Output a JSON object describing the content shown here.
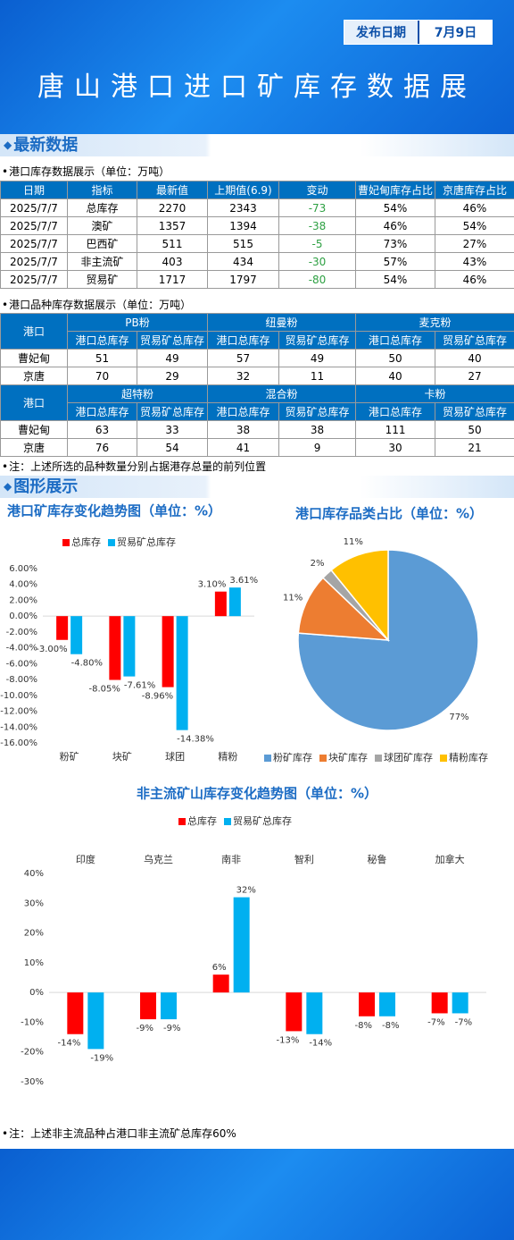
{
  "header": {
    "date_label": "发布日期",
    "date": "7月9日",
    "title": "唐山港口进口矿库存数据展"
  },
  "sections": [
    "最新数据",
    "图形展示"
  ],
  "table1": {
    "caption": "港口库存数据展示（单位：万吨）",
    "columns": [
      "日期",
      "指标",
      "最新值",
      "上期值(6.9)",
      "变动",
      "曹妃甸库存占比",
      "京唐库存占比"
    ],
    "rows": [
      [
        "2025/7/7",
        "总库存",
        "2270",
        "2343",
        "-73",
        "54%",
        "46%"
      ],
      [
        "2025/7/7",
        "澳矿",
        "1357",
        "1394",
        "-38",
        "46%",
        "54%"
      ],
      [
        "2025/7/7",
        "巴西矿",
        "511",
        "515",
        "-5",
        "73%",
        "27%"
      ],
      [
        "2025/7/7",
        "非主流矿",
        "403",
        "434",
        "-30",
        "57%",
        "43%"
      ],
      [
        "2025/7/7",
        "贸易矿",
        "1717",
        "1797",
        "-80",
        "54%",
        "46%"
      ]
    ]
  },
  "table2": {
    "caption": "港口品种库存数据展示（单位：万吨）",
    "blocks": [
      {
        "port": "港口",
        "products": [
          "PB粉",
          "纽曼粉",
          "麦克粉"
        ],
        "subheaders": [
          "港口总库存",
          "贸易矿总库存",
          "港口总库存",
          "贸易矿总库存",
          "港口总库存",
          "贸易矿总库存"
        ],
        "rows": [
          [
            "曹妃甸",
            "51",
            "49",
            "57",
            "49",
            "50",
            "40"
          ],
          [
            "京唐",
            "70",
            "29",
            "32",
            "11",
            "40",
            "27"
          ]
        ]
      },
      {
        "port": "港口",
        "products": [
          "超特粉",
          "混合粉",
          "卡粉"
        ],
        "subheaders": [
          "港口总库存",
          "贸易矿总库存",
          "港口总库存",
          "贸易矿总库存",
          "港口总库存",
          "贸易矿总库存"
        ],
        "rows": [
          [
            "曹妃甸",
            "63",
            "33",
            "38",
            "38",
            "111",
            "50"
          ],
          [
            "京唐",
            "76",
            "54",
            "41",
            "9",
            "30",
            "21"
          ]
        ]
      }
    ]
  },
  "notes": [
    "注：上述所选的品种数量分别占据港存总量的前列位置",
    "注：上述非主流品种占港口非主流矿总库存60%"
  ],
  "chart_data": [
    {
      "type": "bar",
      "title": "港口矿库存变化趋势图（单位：%）",
      "categories": [
        "粉矿",
        "块矿",
        "球团",
        "精粉"
      ],
      "series": [
        {
          "name": "总库存",
          "color": "#ff0000",
          "values": [
            -3.0,
            -8.05,
            -8.96,
            3.1
          ],
          "value_labels": [
            "-3.00%",
            "-8.05%",
            "-8.96%",
            "3.10%"
          ]
        },
        {
          "name": "贸易矿总库存",
          "color": "#00b0f0",
          "values": [
            -4.8,
            -7.61,
            -14.38,
            3.61
          ],
          "value_labels": [
            "-4.80%",
            "-7.61%",
            "-14.38%",
            "3.61%"
          ]
        }
      ],
      "ylim": [
        -16,
        6
      ],
      "yticks": [
        {
          "value": 6,
          "label": "6.00%"
        },
        {
          "value": 4,
          "label": "4.00%"
        },
        {
          "value": 2,
          "label": "2.00%"
        },
        {
          "value": 0,
          "label": "0.00%"
        },
        {
          "value": -2,
          "label": "-2.00%"
        },
        {
          "value": -4,
          "label": "-4.00%"
        },
        {
          "value": -6,
          "label": "-6.00%"
        },
        {
          "value": -8,
          "label": "-8.00%"
        },
        {
          "value": -10,
          "label": "-10.00%"
        },
        {
          "value": -12,
          "label": "-12.00%"
        },
        {
          "value": -14,
          "label": "-14.00%"
        },
        {
          "value": -16,
          "label": "-16.00%"
        }
      ],
      "grid": false
    },
    {
      "type": "pie",
      "title": "港口库存品类占比（单位：%）",
      "categories": [
        "粉矿库存",
        "块矿库存",
        "球团矿库存",
        "精粉库存"
      ],
      "values": [
        77,
        11,
        2,
        11
      ],
      "value_labels": [
        "77%",
        "11%",
        "2%",
        "11%"
      ],
      "colors": [
        "#5b9bd5",
        "#ed7d31",
        "#a5a5a5",
        "#ffc000"
      ]
    },
    {
      "type": "bar",
      "title": "非主流矿山库存变化趋势图（单位：%）",
      "categories": [
        "印度",
        "乌克兰",
        "南非",
        "智利",
        "秘鲁",
        "加拿大"
      ],
      "series": [
        {
          "name": "总库存",
          "color": "#ff0000",
          "values": [
            -14,
            -9,
            6,
            -13,
            -8,
            -7
          ],
          "value_labels": [
            "-14%",
            "-9%",
            "6%",
            "-13%",
            "-8%",
            "-7%"
          ]
        },
        {
          "name": "贸易矿总库存",
          "color": "#00b0f0",
          "values": [
            -19,
            -9,
            32,
            -14,
            -8,
            -7
          ],
          "value_labels": [
            "-19%",
            "-9%",
            "32%",
            "-14%",
            "-8%",
            "-7%"
          ]
        }
      ],
      "ylim": [
        -30,
        40
      ],
      "yticks": [
        {
          "value": 40,
          "label": "40%"
        },
        {
          "value": 30,
          "label": "30%"
        },
        {
          "value": 20,
          "label": "20%"
        },
        {
          "value": 10,
          "label": "10%"
        },
        {
          "value": 0,
          "label": "0%"
        },
        {
          "value": -10,
          "label": "-10%"
        },
        {
          "value": -20,
          "label": "-20%"
        },
        {
          "value": -30,
          "label": "-30%"
        }
      ],
      "grid": false
    }
  ]
}
